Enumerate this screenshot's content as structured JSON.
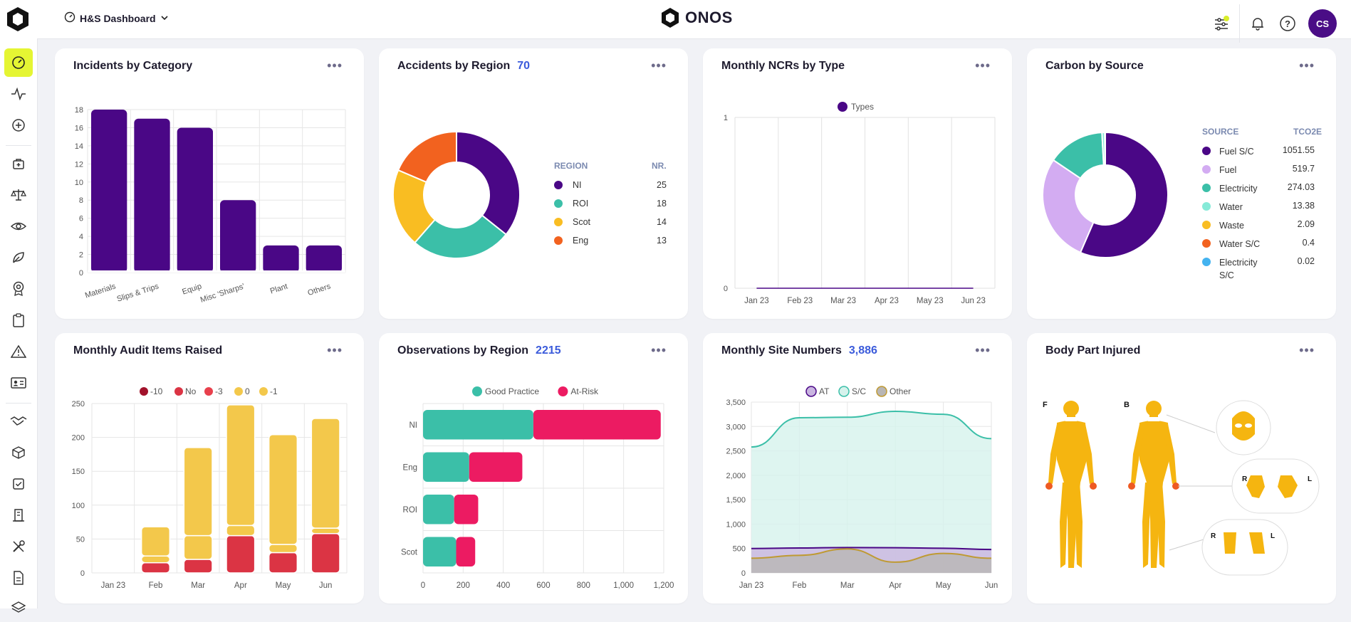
{
  "topbar": {
    "dashboard_label": "H&S Dashboard",
    "brand": "ONOS",
    "user_initials": "CS"
  },
  "sidebar": {
    "items": [
      "dashboard-icon",
      "activity-icon",
      "add-icon",
      "medical-kit-icon",
      "scales-icon",
      "eye-icon",
      "leaf-icon",
      "badge-icon",
      "clipboard-icon",
      "warning-icon",
      "id-card-icon",
      "handshake-icon",
      "box-icon",
      "checkbox-icon",
      "building-icon",
      "tools-icon",
      "document-icon",
      "layers-icon"
    ]
  },
  "cards": {
    "incidents": {
      "title": "Incidents by Category",
      "count": ""
    },
    "accidents": {
      "title": "Accidents by Region",
      "count": "70",
      "col_region": "REGION",
      "col_nr": "NR."
    },
    "ncrs": {
      "title": "Monthly NCRs by Type",
      "count": ""
    },
    "carbon": {
      "title": "Carbon by Source",
      "count": "",
      "col_source": "SOURCE",
      "col_value": "TCO2E"
    },
    "audit": {
      "title": "Monthly Audit Items Raised",
      "count": ""
    },
    "observations": {
      "title": "Observations by Region",
      "count": "2215"
    },
    "site": {
      "title": "Monthly Site Numbers",
      "count": "3,886"
    },
    "body": {
      "title": "Body Part Injured",
      "front_label": "F",
      "back_label": "B",
      "right_label": "R",
      "left_label": "L"
    }
  },
  "chart_data": [
    {
      "id": "incidents",
      "type": "bar",
      "categories": [
        "Materials",
        "Slips & Trips",
        "Equip",
        "Misc 'Sharps'",
        "Plant",
        "Others"
      ],
      "values": [
        18,
        17,
        16,
        8,
        3,
        3
      ],
      "ylim": [
        0,
        18
      ],
      "yticks": [
        0,
        2,
        4,
        6,
        8,
        10,
        12,
        14,
        16,
        18
      ],
      "color": "#4a0786",
      "grid": true
    },
    {
      "id": "accidents",
      "type": "pie",
      "labels": [
        "NI",
        "ROI",
        "Scot",
        "Eng"
      ],
      "values": [
        25,
        18,
        14,
        13
      ],
      "colors": [
        "#4a0786",
        "#3bbfa8",
        "#f9bd22",
        "#f2621f"
      ]
    },
    {
      "id": "ncrs",
      "type": "line",
      "categories": [
        "Jan 23",
        "Feb 23",
        "Mar 23",
        "Apr 23",
        "May 23",
        "Jun 23"
      ],
      "series": [
        {
          "name": "Types",
          "values": [
            0,
            0,
            0,
            0,
            0,
            0
          ],
          "color": "#4a0786"
        }
      ],
      "ylim": [
        0,
        1
      ],
      "yticks": [
        0,
        1
      ],
      "grid": true
    },
    {
      "id": "carbon",
      "type": "pie",
      "labels": [
        "Fuel S/C",
        "Fuel",
        "Electricity",
        "Water",
        "Waste",
        "Water S/C",
        "Electricity S/C"
      ],
      "values": [
        1051.55,
        519.7,
        274.03,
        13.38,
        2.09,
        0.4,
        0.02
      ],
      "display_values": [
        "1051.55",
        "519.7",
        "274.03",
        "13.38",
        "2.09",
        "0.4",
        "0.02"
      ],
      "label_lines": [
        [
          "Fuel S/C"
        ],
        [
          "Fuel"
        ],
        [
          "Electricity"
        ],
        [
          "Water"
        ],
        [
          "Waste"
        ],
        [
          "Water S/C"
        ],
        [
          "Electricity",
          "S/C"
        ]
      ],
      "colors": [
        "#4a0786",
        "#d3acf2",
        "#3bbfa8",
        "#86ead8",
        "#f9bd22",
        "#f2621f",
        "#44b3f0"
      ]
    },
    {
      "id": "audit",
      "type": "bar",
      "stacked": true,
      "categories": [
        "Jan 23",
        "Feb",
        "Mar",
        "Apr",
        "May",
        "Jun"
      ],
      "series": [
        {
          "name": "-10",
          "values": [
            0,
            0,
            0,
            0,
            0,
            0
          ],
          "color": "#a1122b"
        },
        {
          "name": "No",
          "values": [
            0,
            15,
            20,
            55,
            30,
            58
          ],
          "color": "#db3444"
        },
        {
          "name": "-3",
          "values": [
            0,
            0,
            0,
            0,
            0,
            0
          ],
          "color": "#e8404c"
        },
        {
          "name": "0",
          "values": [
            0,
            10,
            35,
            15,
            12,
            8
          ],
          "color": "#f3c84b"
        },
        {
          "name": "-1",
          "values": [
            0,
            43,
            130,
            178,
            162,
            162
          ],
          "color": "#f3c84b"
        }
      ],
      "ylim": [
        0,
        250
      ],
      "yticks": [
        0,
        50,
        100,
        150,
        200,
        250
      ],
      "grid": true
    },
    {
      "id": "observations",
      "type": "bar",
      "horizontal": true,
      "stacked": true,
      "categories": [
        "NI",
        "Eng",
        "ROI",
        "Scot"
      ],
      "series": [
        {
          "name": "Good Practice",
          "values": [
            550,
            230,
            155,
            165
          ],
          "color": "#3bbfa8"
        },
        {
          "name": "At-Risk",
          "values": [
            635,
            265,
            120,
            95
          ],
          "color": "#ec1b62"
        }
      ],
      "xlim": [
        0,
        1200
      ],
      "xticks": [
        0,
        200,
        400,
        600,
        800,
        1000,
        1200
      ],
      "xticklabels": [
        "0",
        "200",
        "400",
        "600",
        "800",
        "1,000",
        "1,200"
      ],
      "grid": true
    },
    {
      "id": "site",
      "type": "area",
      "categories": [
        "Jan 23",
        "Feb",
        "Mar",
        "Apr",
        "May",
        "Jun"
      ],
      "series": [
        {
          "name": "AT",
          "values": [
            500,
            510,
            520,
            515,
            505,
            480
          ],
          "color": "#4a0786",
          "fill": "#c9b5e0"
        },
        {
          "name": "S/C",
          "values": [
            2580,
            3180,
            3190,
            3310,
            3250,
            2750
          ],
          "color": "#3bbfa8",
          "fill": "#d6f2ec"
        },
        {
          "name": "Other",
          "values": [
            300,
            360,
            490,
            220,
            400,
            300
          ],
          "color": "#bf9a33",
          "fill": "#b9b6b4"
        }
      ],
      "ylim": [
        0,
        3500
      ],
      "yticks": [
        0,
        500,
        1000,
        1500,
        2000,
        2500,
        3000,
        3500
      ],
      "yticklabels": [
        "0",
        "500",
        "1,000",
        "1,500",
        "2,000",
        "2,500",
        "3,000",
        "3,500"
      ],
      "grid": true
    }
  ]
}
